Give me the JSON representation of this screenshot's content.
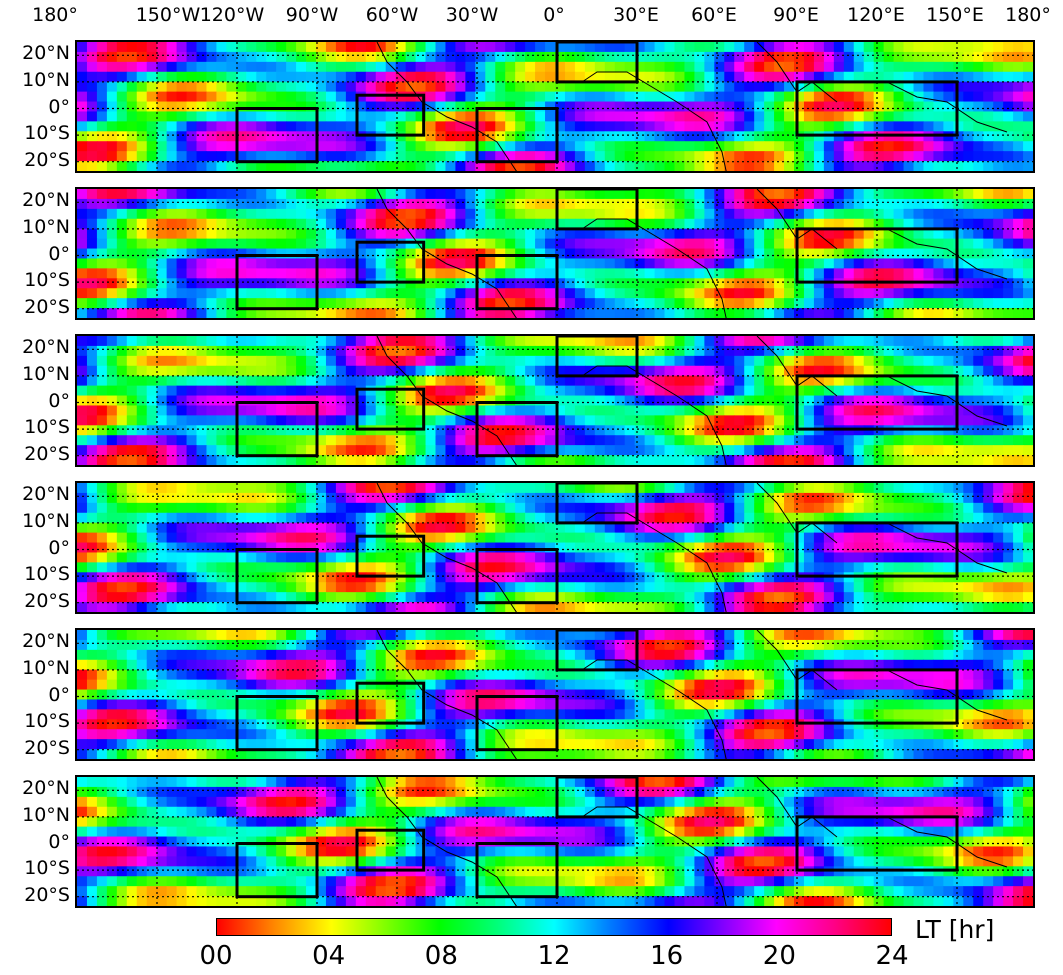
{
  "lon_labels": [
    "180°",
    "150°W",
    "120°W",
    "90°W",
    "60°W",
    "30°W",
    "0°",
    "30°E",
    "60°E",
    "90°E",
    "120°E",
    "150°E",
    "180°"
  ],
  "lat_labels": [
    "20°N",
    "10°N",
    "0°",
    "10°S",
    "20°S"
  ],
  "panel_count": 6,
  "colorbar": {
    "ticks": [
      "00",
      "04",
      "08",
      "12",
      "16",
      "20",
      "24"
    ],
    "unit": "LT [hr]",
    "colors": [
      "#ff0000",
      "#ffff00",
      "#00ff00",
      "#00ffff",
      "#0000ff",
      "#ff00ff",
      "#ff0000"
    ]
  },
  "map_extent": {
    "lon": [
      -180,
      180
    ],
    "lat": [
      -25,
      25
    ]
  },
  "boxes": [
    {
      "lon": [
        -120,
        -90
      ],
      "lat": [
        -20,
        0
      ]
    },
    {
      "lon": [
        -75,
        -50
      ],
      "lat": [
        -10,
        5
      ]
    },
    {
      "lon": [
        -30,
        0
      ],
      "lat": [
        -20,
        0
      ]
    },
    {
      "lon": [
        0,
        30
      ],
      "lat": [
        10,
        25
      ]
    },
    {
      "lon": [
        90,
        150
      ],
      "lat": [
        -10,
        10
      ]
    }
  ]
}
